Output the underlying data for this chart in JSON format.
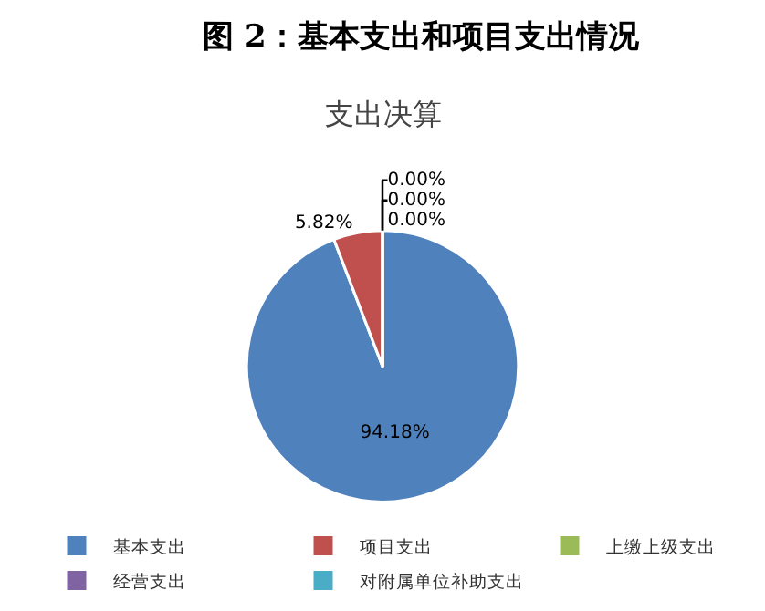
{
  "chart_data": {
    "type": "pie",
    "title": "图 2：基本支出和项目支出情况",
    "subtitle": "支出决算",
    "categories": [
      "基本支出",
      "项目支出",
      "上缴上级支出",
      "经营支出",
      "对附属单位补助支出"
    ],
    "values": [
      94.18,
      5.82,
      0,
      0,
      0
    ],
    "colors": [
      "#4f81bd",
      "#c0504d",
      "#9bbb59",
      "#8064a2",
      "#4bacc6"
    ],
    "value_labels": [
      "94.18%",
      "5.82%",
      "0.00%",
      "0.00%",
      "0.00%"
    ],
    "legend": "bottom"
  }
}
